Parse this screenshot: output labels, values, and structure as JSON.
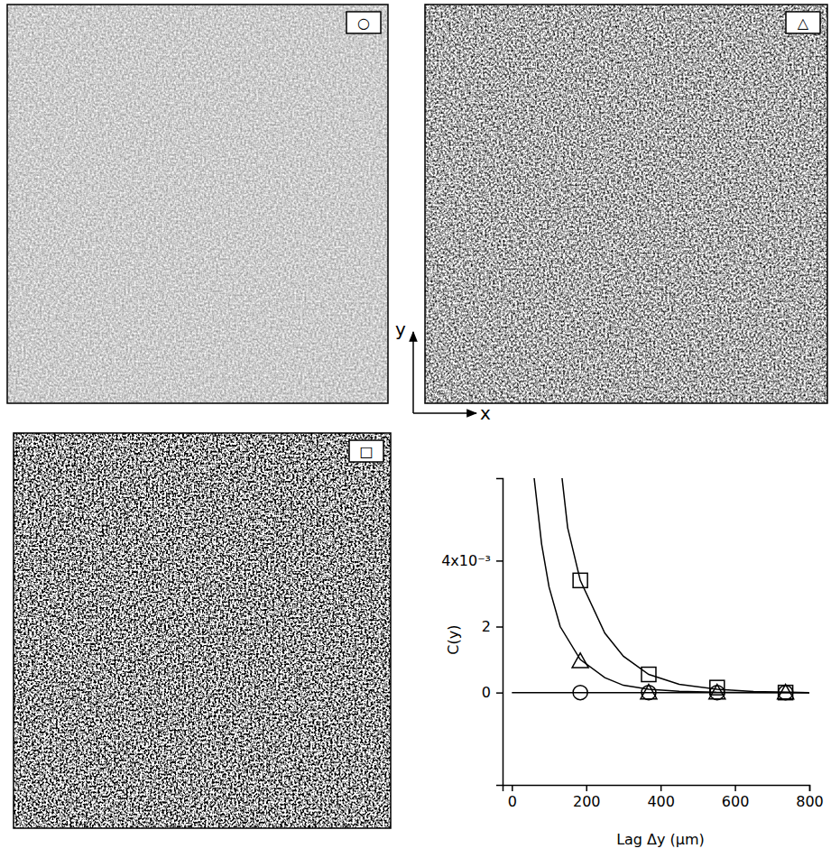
{
  "chart_data": {
    "type": "scatter",
    "x_label": "Lag Δy (µm)",
    "y_label": "C(y)",
    "xlim": [
      -25,
      800
    ],
    "ylim": [
      -0.0028,
      0.0065
    ],
    "xticks": [
      0,
      200,
      400,
      600,
      800
    ],
    "yticks": [
      0,
      {
        "value": 0.002,
        "label": "2"
      },
      {
        "value": 0.004,
        "label": "4x10⁻³"
      }
    ],
    "series": [
      {
        "name": "○",
        "marker": "circle",
        "color": "#000000",
        "x": [
          184,
          368,
          552,
          736
        ],
        "values": [
          0.0,
          0.0,
          0.0,
          0.0
        ],
        "fit": {
          "x": [
            0,
            800
          ],
          "values": [
            0.0,
            0.0
          ]
        }
      },
      {
        "name": "△",
        "marker": "triangle",
        "color": "#000000",
        "x": [
          184,
          368,
          552,
          736
        ],
        "values": [
          0.00095,
          0.0,
          0.0,
          0.0
        ],
        "fit": {
          "x": [
            60,
            80,
            100,
            130,
            184,
            250,
            300,
            368,
            450,
            550,
            800
          ],
          "values": [
            0.0065,
            0.0045,
            0.0032,
            0.002,
            0.001,
            0.00045,
            0.00022,
            0.0001,
            4e-05,
            1e-05,
            0.0
          ]
        }
      },
      {
        "name": "□",
        "marker": "square",
        "color": "#000000",
        "x": [
          184,
          368,
          552,
          736
        ],
        "values": [
          0.0034,
          0.00055,
          0.00015,
          0.0
        ],
        "fit": {
          "x": [
            135,
            150,
            184,
            250,
            300,
            368,
            450,
            552,
            650,
            800
          ],
          "values": [
            0.0065,
            0.005,
            0.0034,
            0.0018,
            0.0011,
            0.00055,
            0.00025,
            0.0001,
            3e-05,
            0.0
          ]
        }
      }
    ]
  },
  "orientation_arrows": {
    "x": "x",
    "y": "y"
  }
}
